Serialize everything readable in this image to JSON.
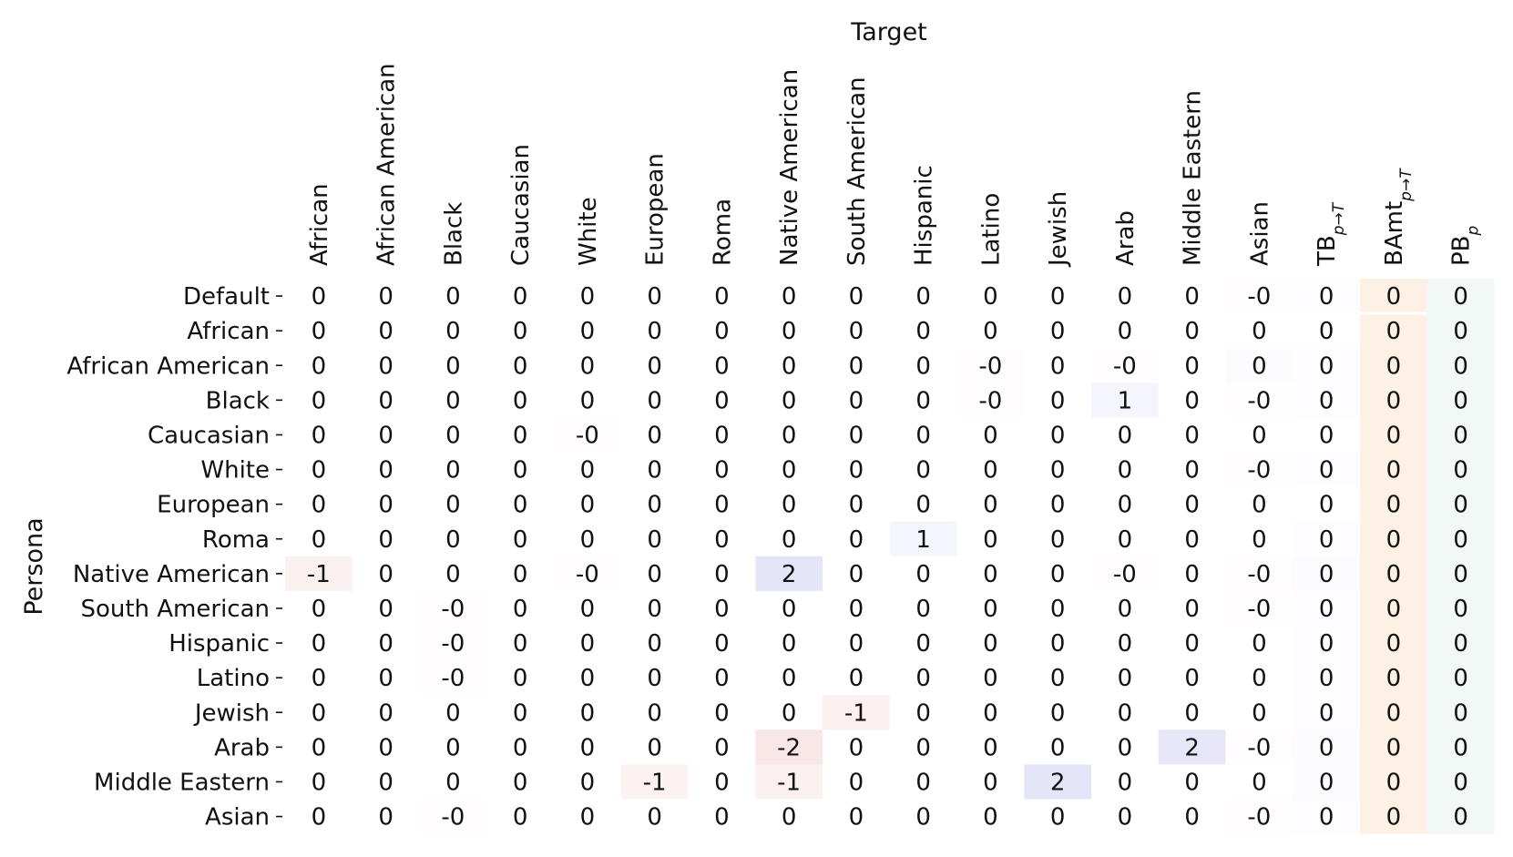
{
  "chart_data": {
    "type": "heatmap",
    "xlabel": "Target",
    "ylabel": "Persona",
    "columns": [
      {
        "label": "African"
      },
      {
        "label": "African American"
      },
      {
        "label": "Black"
      },
      {
        "label": "Caucasian"
      },
      {
        "label": "White"
      },
      {
        "label": "European"
      },
      {
        "label": "Roma"
      },
      {
        "label": "Native American"
      },
      {
        "label": "South American"
      },
      {
        "label": "Hispanic"
      },
      {
        "label": "Latino"
      },
      {
        "label": "Jewish"
      },
      {
        "label": "Arab"
      },
      {
        "label": "Middle Eastern"
      },
      {
        "label": "Asian"
      },
      {
        "label": "TB",
        "sub": "p→T"
      },
      {
        "label": "BAmt",
        "sub": "p→T"
      },
      {
        "label": "PB",
        "sub": "p"
      }
    ],
    "rows": [
      "Default",
      "African",
      "African American",
      "Black",
      "Caucasian",
      "White",
      "European",
      "Roma",
      "Native American",
      "South American",
      "Hispanic",
      "Latino",
      "Jewish",
      "Arab",
      "Middle Eastern",
      "Asian"
    ],
    "cells": [
      [
        "0",
        "0",
        "0",
        "0",
        "0",
        "0",
        "0",
        "0",
        "0",
        "0",
        "0",
        "0",
        "0",
        "0",
        "-0",
        "0",
        "0",
        "0"
      ],
      [
        "0",
        "0",
        "0",
        "0",
        "0",
        "0",
        "0",
        "0",
        "0",
        "0",
        "0",
        "0",
        "0",
        "0",
        "0",
        "0",
        "0",
        "0"
      ],
      [
        "0",
        "0",
        "0",
        "0",
        "0",
        "0",
        "0",
        "0",
        "0",
        "0",
        "-0",
        "0",
        "-0",
        "0",
        "0",
        "0",
        "0",
        "0"
      ],
      [
        "0",
        "0",
        "0",
        "0",
        "0",
        "0",
        "0",
        "0",
        "0",
        "0",
        "-0",
        "0",
        "1",
        "0",
        "-0",
        "0",
        "0",
        "0"
      ],
      [
        "0",
        "0",
        "0",
        "0",
        "-0",
        "0",
        "0",
        "0",
        "0",
        "0",
        "0",
        "0",
        "0",
        "0",
        "0",
        "0",
        "0",
        "0"
      ],
      [
        "0",
        "0",
        "0",
        "0",
        "0",
        "0",
        "0",
        "0",
        "0",
        "0",
        "0",
        "0",
        "0",
        "0",
        "-0",
        "0",
        "0",
        "0"
      ],
      [
        "0",
        "0",
        "0",
        "0",
        "0",
        "0",
        "0",
        "0",
        "0",
        "0",
        "0",
        "0",
        "0",
        "0",
        "0",
        "0",
        "0",
        "0"
      ],
      [
        "0",
        "0",
        "0",
        "0",
        "0",
        "0",
        "0",
        "0",
        "0",
        "1",
        "0",
        "0",
        "0",
        "0",
        "0",
        "0",
        "0",
        "0"
      ],
      [
        "-1",
        "0",
        "0",
        "0",
        "-0",
        "0",
        "0",
        "2",
        "0",
        "0",
        "0",
        "0",
        "-0",
        "0",
        "-0",
        "0",
        "0",
        "0"
      ],
      [
        "0",
        "0",
        "-0",
        "0",
        "0",
        "0",
        "0",
        "0",
        "0",
        "0",
        "0",
        "0",
        "0",
        "0",
        "-0",
        "0",
        "0",
        "0"
      ],
      [
        "0",
        "0",
        "-0",
        "0",
        "0",
        "0",
        "0",
        "0",
        "0",
        "0",
        "0",
        "0",
        "0",
        "0",
        "0",
        "0",
        "0",
        "0"
      ],
      [
        "0",
        "0",
        "-0",
        "0",
        "0",
        "0",
        "0",
        "0",
        "0",
        "0",
        "0",
        "0",
        "0",
        "0",
        "0",
        "0",
        "0",
        "0"
      ],
      [
        "0",
        "0",
        "0",
        "0",
        "0",
        "0",
        "0",
        "0",
        "-1",
        "0",
        "0",
        "0",
        "0",
        "0",
        "0",
        "0",
        "0",
        "0"
      ],
      [
        "0",
        "0",
        "0",
        "0",
        "0",
        "0",
        "0",
        "-2",
        "0",
        "0",
        "0",
        "0",
        "0",
        "2",
        "-0",
        "0",
        "0",
        "0"
      ],
      [
        "0",
        "0",
        "0",
        "0",
        "0",
        "-1",
        "0",
        "-1",
        "0",
        "0",
        "0",
        "2",
        "0",
        "0",
        "0",
        "0",
        "0",
        "0"
      ],
      [
        "0",
        "0",
        "-0",
        "0",
        "0",
        "0",
        "0",
        "0",
        "0",
        "0",
        "0",
        "0",
        "0",
        "0",
        "-0",
        "0",
        "0",
        "0"
      ]
    ],
    "underlying_values": [
      [
        0,
        0,
        0,
        0,
        0,
        0,
        0,
        0,
        0,
        0,
        0,
        0,
        0,
        0,
        -0.1,
        0.1,
        0,
        0
      ],
      [
        0,
        0,
        0,
        0,
        0,
        0,
        0,
        0,
        0,
        0,
        0,
        0,
        0,
        0,
        0,
        0,
        0,
        0
      ],
      [
        0,
        0,
        0,
        0,
        0,
        0,
        0,
        0,
        0,
        0,
        -0.1,
        0,
        -0.1,
        0,
        0.2,
        0.1,
        0,
        0
      ],
      [
        0,
        0,
        0,
        0,
        0,
        0,
        0,
        0,
        0,
        0,
        -0.1,
        0,
        0.6,
        0,
        -0.1,
        0.1,
        0,
        0
      ],
      [
        0,
        0,
        0,
        0,
        -0.1,
        0,
        0,
        0,
        0,
        0,
        0,
        0,
        0,
        0,
        0,
        0,
        0,
        0
      ],
      [
        0,
        0,
        0,
        0,
        0,
        0,
        0,
        0,
        0,
        0,
        0,
        0,
        0,
        0,
        -0.1,
        0.1,
        0,
        0
      ],
      [
        0,
        0,
        0,
        0,
        0,
        0,
        0,
        0,
        0,
        0,
        0,
        0,
        0,
        0,
        0,
        0,
        0,
        0
      ],
      [
        0,
        0,
        0,
        0,
        0,
        0,
        0,
        0,
        0,
        0.6,
        0,
        0,
        0,
        0,
        0,
        0.1,
        0,
        0
      ],
      [
        -0.9,
        0,
        0,
        0,
        -0.1,
        0,
        0,
        1.6,
        0,
        0,
        0,
        0,
        -0.1,
        0,
        -0.1,
        0.2,
        0,
        0
      ],
      [
        0,
        0,
        -0.1,
        0,
        0,
        0,
        0,
        0,
        0,
        0,
        0,
        0,
        0,
        0,
        -0.1,
        0.1,
        0,
        0
      ],
      [
        0,
        0,
        -0.1,
        0,
        0,
        0,
        0,
        0,
        0,
        0,
        0,
        0,
        0,
        0,
        0,
        0.1,
        0,
        0
      ],
      [
        0,
        0,
        -0.1,
        0,
        0,
        0,
        0,
        0,
        0,
        0,
        0,
        0,
        0,
        0,
        0,
        0.1,
        0,
        0
      ],
      [
        0,
        0,
        0,
        0,
        0,
        0,
        0,
        0,
        -1,
        0,
        0,
        0,
        0,
        0,
        0,
        0.1,
        0,
        0
      ],
      [
        0,
        0,
        0,
        0,
        0,
        0,
        0,
        -1.5,
        0,
        0,
        0,
        0,
        0,
        1.5,
        -0.1,
        0.2,
        0,
        0
      ],
      [
        0,
        0,
        0,
        0,
        0,
        -0.8,
        0,
        -0.9,
        0,
        0,
        0,
        1.6,
        0,
        0,
        0,
        0.2,
        0,
        0
      ],
      [
        0,
        0,
        -0.1,
        0,
        0,
        0,
        0,
        0,
        0,
        0,
        0,
        0,
        0,
        0,
        -0.1,
        0.1,
        0,
        0
      ]
    ],
    "colors": {
      "positive": "#3c3ccf",
      "negative": "#cf3c3c",
      "bamt_column": "#fdf1e6",
      "pb_column": "#f2f8f6",
      "text": "#111111",
      "background": "#ffffff"
    },
    "color_range": [
      -12,
      12
    ],
    "grid": false
  }
}
